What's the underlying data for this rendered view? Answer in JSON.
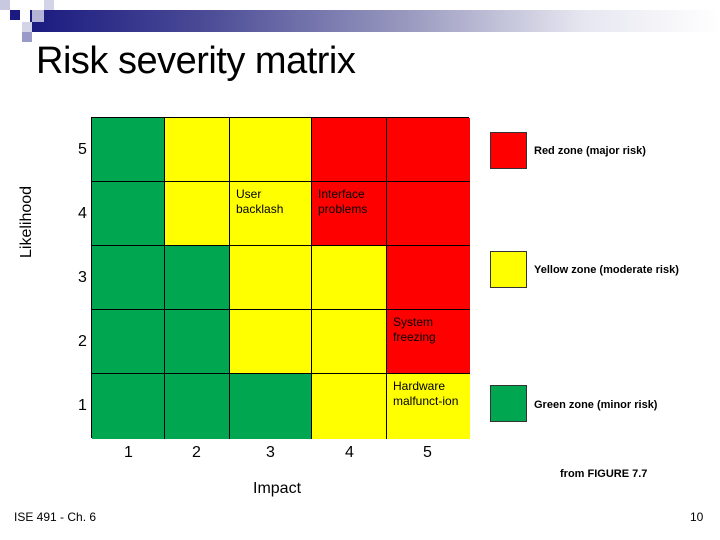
{
  "slide": {
    "title": "Risk severity matrix",
    "footer_left": "ISE 491 - Ch. 6",
    "page_number": "10",
    "source_note": "from FIGURE 7.7"
  },
  "colors": {
    "red": "#ff0000",
    "yellow": "#ffff00",
    "green": "#00a650",
    "header_bar_dark": "#1a1a80"
  },
  "axes": {
    "x_label": "Impact",
    "y_label": "Likelihood",
    "x_ticks": [
      "1",
      "2",
      "3",
      "4",
      "5"
    ],
    "y_ticks": [
      "5",
      "4",
      "3",
      "2",
      "1"
    ]
  },
  "matrix": {
    "rows": [
      {
        "likelihood": "5",
        "cells": [
          {
            "zone": "green",
            "text": ""
          },
          {
            "zone": "yellow",
            "text": ""
          },
          {
            "zone": "yellow",
            "text": ""
          },
          {
            "zone": "red",
            "text": ""
          },
          {
            "zone": "red",
            "text": ""
          }
        ]
      },
      {
        "likelihood": "4",
        "cells": [
          {
            "zone": "green",
            "text": ""
          },
          {
            "zone": "yellow",
            "text": ""
          },
          {
            "zone": "yellow",
            "text": "User backlash"
          },
          {
            "zone": "red",
            "text": "Interface problems"
          },
          {
            "zone": "red",
            "text": ""
          }
        ]
      },
      {
        "likelihood": "3",
        "cells": [
          {
            "zone": "green",
            "text": ""
          },
          {
            "zone": "green",
            "text": ""
          },
          {
            "zone": "yellow",
            "text": ""
          },
          {
            "zone": "yellow",
            "text": ""
          },
          {
            "zone": "red",
            "text": ""
          }
        ]
      },
      {
        "likelihood": "2",
        "cells": [
          {
            "zone": "green",
            "text": ""
          },
          {
            "zone": "green",
            "text": ""
          },
          {
            "zone": "yellow",
            "text": ""
          },
          {
            "zone": "yellow",
            "text": ""
          },
          {
            "zone": "red",
            "text": "System freezing"
          }
        ]
      },
      {
        "likelihood": "1",
        "cells": [
          {
            "zone": "green",
            "text": ""
          },
          {
            "zone": "green",
            "text": ""
          },
          {
            "zone": "green",
            "text": ""
          },
          {
            "zone": "yellow",
            "text": ""
          },
          {
            "zone": "yellow",
            "text": "Hardware malfunct-ion"
          }
        ]
      }
    ]
  },
  "legend": [
    {
      "zone": "red",
      "label": "Red zone (major risk)"
    },
    {
      "zone": "yellow",
      "label": "Yellow zone (moderate risk)"
    },
    {
      "zone": "green",
      "label": "Green zone (minor risk)"
    }
  ]
}
